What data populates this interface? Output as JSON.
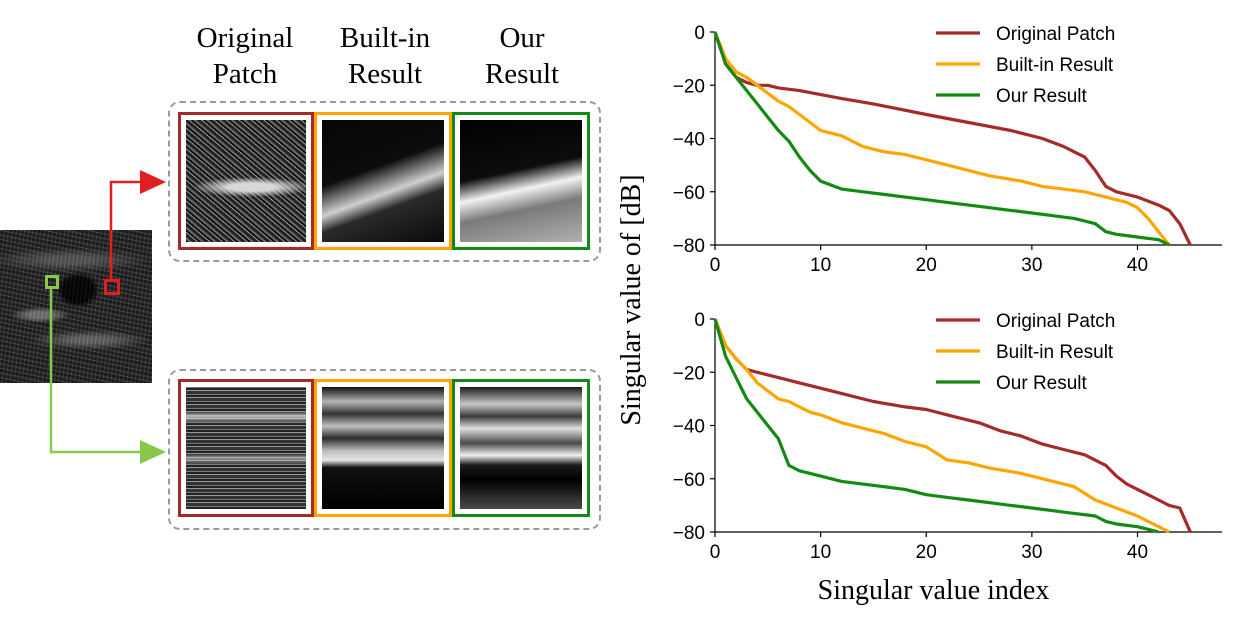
{
  "figure": {
    "column_headers": [
      {
        "line1": "Original",
        "line2": "Patch"
      },
      {
        "line1": "Built-in",
        "line2": "Result"
      },
      {
        "line1": "Our",
        "line2": "Result"
      }
    ],
    "colors": {
      "original": "#a52a2a",
      "builtin": "#ffa500",
      "ours": "#138a13",
      "marker_red": "#e02020",
      "marker_green": "#88c84a",
      "dash": "#9a9a9a"
    }
  },
  "chart_data": [
    {
      "type": "line",
      "title": "",
      "xlabel": "",
      "ylabel": "Singular value of  [dB]",
      "xlim": [
        0,
        48
      ],
      "ylim": [
        -80,
        0
      ],
      "xticks": [
        0,
        10,
        20,
        30,
        40
      ],
      "yticks": [
        0,
        -20,
        -40,
        -60,
        -80
      ],
      "grid": false,
      "legend": "top-right",
      "series": [
        {
          "name": "Original Patch",
          "color": "#a52a2a",
          "x": [
            0,
            1,
            2,
            3,
            4,
            5,
            6,
            8,
            10,
            12,
            15,
            20,
            24,
            28,
            31,
            33,
            34,
            35,
            36,
            37,
            38,
            40,
            42,
            43,
            44,
            45
          ],
          "values": [
            0,
            -12,
            -17,
            -19,
            -20,
            -20,
            -21,
            -22,
            -23.5,
            -25,
            -27,
            -31,
            -34,
            -37,
            -40,
            -43,
            -45,
            -47,
            -52,
            -58,
            -60,
            -62,
            -65,
            -67,
            -72,
            -80
          ]
        },
        {
          "name": "Built-in Result",
          "color": "#ffa500",
          "x": [
            0,
            1,
            2,
            3,
            4,
            5,
            6,
            7,
            8,
            9,
            10,
            11,
            12,
            13,
            14,
            15,
            16,
            18,
            20,
            22,
            24,
            26,
            29,
            31,
            33,
            35,
            37,
            39,
            40,
            41,
            42,
            43
          ],
          "values": [
            0,
            -10,
            -15,
            -17,
            -20,
            -23,
            -26,
            -28,
            -31,
            -34,
            -37,
            -38,
            -39,
            -41,
            -43,
            -44,
            -45,
            -46,
            -48,
            -50,
            -52,
            -54,
            -56,
            -58,
            -59,
            -60,
            -62,
            -64,
            -66,
            -70,
            -75,
            -80
          ]
        },
        {
          "name": "Our Result",
          "color": "#138a13",
          "x": [
            0,
            1,
            2,
            3,
            4,
            5,
            6,
            7,
            8,
            9,
            10,
            12,
            14,
            16,
            18,
            20,
            22,
            24,
            26,
            28,
            30,
            32,
            34,
            35,
            36,
            37,
            38,
            40,
            42,
            43
          ],
          "values": [
            0,
            -12,
            -17,
            -22,
            -27,
            -32,
            -37,
            -41,
            -47,
            -52,
            -56,
            -59,
            -60,
            -61,
            -62,
            -63,
            -64,
            -65,
            -66,
            -67,
            -68,
            -69,
            -70,
            -71,
            -72,
            -75,
            -76,
            -77,
            -78,
            -80
          ]
        }
      ]
    },
    {
      "type": "line",
      "title": "",
      "xlabel": "Singular value index",
      "ylabel": "",
      "xlim": [
        0,
        48
      ],
      "ylim": [
        -80,
        0
      ],
      "xticks": [
        0,
        10,
        20,
        30,
        40
      ],
      "yticks": [
        0,
        -20,
        -40,
        -60,
        -80
      ],
      "grid": false,
      "legend": "top-right",
      "series": [
        {
          "name": "Original Patch",
          "color": "#a52a2a",
          "x": [
            0,
            1,
            2,
            3,
            4,
            5,
            6,
            8,
            10,
            12,
            15,
            18,
            20,
            22,
            25,
            27,
            29,
            31,
            33,
            35,
            37,
            38,
            39,
            40,
            41,
            42,
            43,
            44,
            45
          ],
          "values": [
            0,
            -10,
            -15,
            -19,
            -20,
            -21,
            -22,
            -24,
            -26,
            -28,
            -31,
            -33,
            -34,
            -36,
            -39,
            -42,
            -44,
            -47,
            -49,
            -51,
            -55,
            -59,
            -62,
            -64,
            -66,
            -68,
            -70,
            -71,
            -80
          ]
        },
        {
          "name": "Built-in Result",
          "color": "#ffa500",
          "x": [
            0,
            1,
            2,
            3,
            4,
            5,
            6,
            7,
            8,
            9,
            10,
            12,
            14,
            16,
            18,
            20,
            22,
            24,
            26,
            29,
            32,
            34,
            36,
            38,
            40,
            41,
            42,
            43
          ],
          "values": [
            0,
            -10,
            -15,
            -19,
            -24,
            -27,
            -30,
            -31,
            -33,
            -35,
            -36,
            -39,
            -41,
            -43,
            -46,
            -48,
            -53,
            -54,
            -56,
            -58,
            -61,
            -63,
            -68,
            -71,
            -74,
            -76,
            -78,
            -80
          ]
        },
        {
          "name": "Our Result",
          "color": "#138a13",
          "x": [
            0,
            1,
            2,
            3,
            4,
            5,
            6,
            7,
            8,
            10,
            12,
            14,
            16,
            18,
            20,
            22,
            24,
            26,
            28,
            30,
            32,
            34,
            36,
            37,
            38,
            40,
            41,
            42
          ],
          "values": [
            0,
            -14,
            -22,
            -30,
            -35,
            -40,
            -45,
            -55,
            -57,
            -59,
            -61,
            -62,
            -63,
            -64,
            -66,
            -67,
            -68,
            -69,
            -70,
            -71,
            -72,
            -73,
            -74,
            -76,
            -77,
            -78,
            -79,
            -80
          ]
        }
      ]
    }
  ]
}
